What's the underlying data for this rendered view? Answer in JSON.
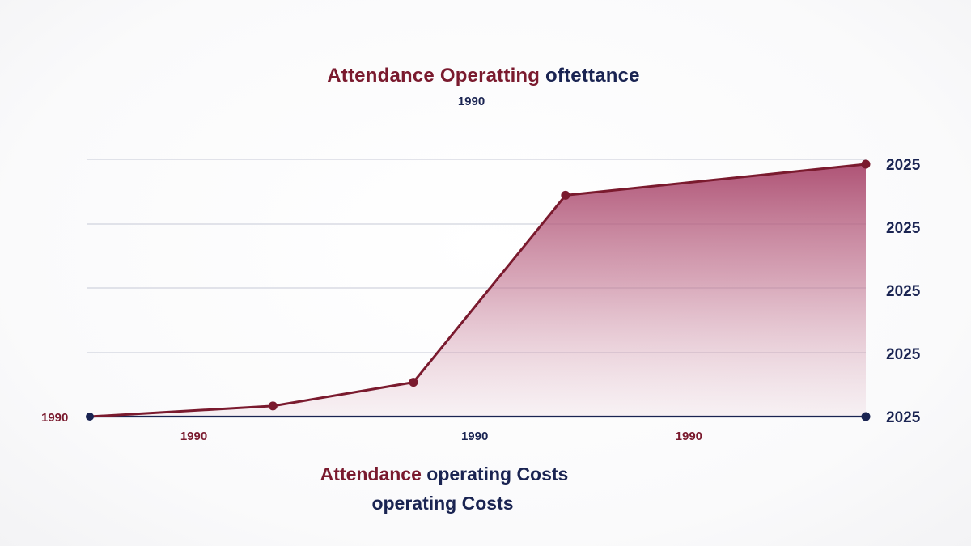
{
  "colors": {
    "maroon": "#7a1a2e",
    "navy": "#1a2452",
    "fill": "#a8456a",
    "grid": "#c6c9d6"
  },
  "title": {
    "part1": "Attendance Operatting",
    "part2": "oftettance"
  },
  "subtitle": "1990",
  "caption": {
    "line1_part1": "Attendance",
    "line1_part2": "operating Costs",
    "line2": "operating Costs"
  },
  "chart_data": {
    "type": "area",
    "x": [
      0,
      0.236,
      0.417,
      0.613,
      1
    ],
    "y": [
      0,
      0.042,
      0.136,
      0.877,
      1
    ],
    "xlim": [
      0,
      1
    ],
    "ylim": [
      0,
      1
    ],
    "grid": true,
    "left_axis_label": "1990",
    "y_tick_labels": [
      "2025",
      "2025",
      "2025",
      "2025",
      "2025"
    ],
    "x_tick_labels": [
      "1990",
      "1990",
      "1990"
    ],
    "x_tick_positions": [
      0.134,
      0.496,
      0.772
    ]
  }
}
